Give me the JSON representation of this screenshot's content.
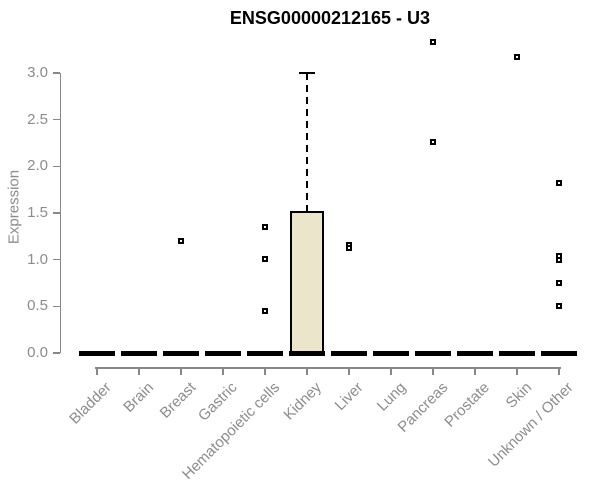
{
  "chart_data": {
    "type": "box",
    "title": "ENSG00000212165 - U3",
    "ylabel": "Expression",
    "xlabel": "",
    "ylim": [
      0,
      3.0
    ],
    "yticks": [
      0,
      0.5,
      1,
      1.5,
      2,
      2.5,
      3
    ],
    "grid": false,
    "legend": "none",
    "categories": [
      "Bladder",
      "Brain",
      "Breast",
      "Gastric",
      "Hematopoietic cells",
      "Kidney",
      "Liver",
      "Lung",
      "Pancreas",
      "Prostate",
      "Skin",
      "Unknown / Other"
    ],
    "boxes": [
      {
        "category": "Bladder",
        "low": 0,
        "q1": 0,
        "median": 0,
        "q3": 0,
        "high": 0,
        "outliers": []
      },
      {
        "category": "Brain",
        "low": 0,
        "q1": 0,
        "median": 0,
        "q3": 0,
        "high": 0,
        "outliers": []
      },
      {
        "category": "Breast",
        "low": 0,
        "q1": 0,
        "median": 0,
        "q3": 0,
        "high": 0,
        "outliers": [
          1.2
        ]
      },
      {
        "category": "Gastric",
        "low": 0,
        "q1": 0,
        "median": 0,
        "q3": 0,
        "high": 0,
        "outliers": []
      },
      {
        "category": "Hematopoietic cells",
        "low": 0,
        "q1": 0,
        "median": 0,
        "q3": 0,
        "high": 0,
        "outliers": [
          1.35,
          1.01,
          0.45
        ]
      },
      {
        "category": "Kidney",
        "low": 0,
        "q1": 0,
        "median": 0,
        "q3": 1.52,
        "high": 3.0,
        "outliers": []
      },
      {
        "category": "Liver",
        "low": 0,
        "q1": 0,
        "median": 0,
        "q3": 0,
        "high": 0,
        "outliers": [
          1.16,
          1.13
        ]
      },
      {
        "category": "Lung",
        "low": 0,
        "q1": 0,
        "median": 0,
        "q3": 0,
        "high": 0,
        "outliers": []
      },
      {
        "category": "Pancreas",
        "low": 0,
        "q1": 0,
        "median": 0,
        "q3": 0,
        "high": 0,
        "outliers": [
          3.33,
          2.26
        ]
      },
      {
        "category": "Prostate",
        "low": 0,
        "q1": 0,
        "median": 0,
        "q3": 0,
        "high": 0,
        "outliers": []
      },
      {
        "category": "Skin",
        "low": 0,
        "q1": 0,
        "median": 0,
        "q3": 0,
        "high": 0,
        "outliers": [
          3.17
        ]
      },
      {
        "category": "Unknown / Other",
        "low": 0,
        "q1": 0,
        "median": 0,
        "q3": 0,
        "high": 0,
        "outliers": [
          1.82,
          1.04,
          1.0,
          0.75,
          0.5
        ]
      }
    ],
    "colors": {
      "box_fill": "#ebe5cb",
      "box_border": "#000000",
      "marks": "#000000",
      "axis": "#888888",
      "tick_label": "#8c8c8c",
      "title": "#000000",
      "background": "#ffffff"
    }
  }
}
